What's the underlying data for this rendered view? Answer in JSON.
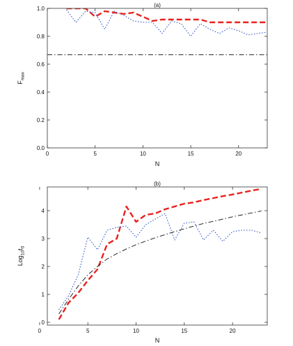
{
  "chart_data": [
    {
      "type": "line",
      "title": "(a)",
      "xlabel": "N",
      "ylabel": "F",
      "ylabel_sub": "max",
      "xlim": [
        0,
        23
      ],
      "ylim": [
        0,
        1
      ],
      "xticks": [
        0,
        5,
        10,
        15,
        20
      ],
      "yticks": [
        0,
        0.2,
        0.4,
        0.6,
        0.8,
        1
      ],
      "ytick_labels": [
        "0.0",
        "0.2",
        "0.4",
        "0.6",
        "0.8",
        "1.0"
      ],
      "series": [
        {
          "color": "#e8211d",
          "dash": "long-dash",
          "width": 2.4,
          "x": [
            2,
            3,
            4,
            5,
            6,
            7,
            8,
            9,
            10,
            11,
            12,
            13,
            14,
            15,
            16,
            17,
            18,
            19,
            20,
            21,
            22,
            23
          ],
          "y": [
            1.0,
            1.0,
            1.0,
            0.94,
            0.98,
            0.97,
            0.96,
            0.97,
            0.94,
            0.91,
            0.92,
            0.92,
            0.92,
            0.92,
            0.92,
            0.9,
            0.9,
            0.9,
            0.9,
            0.9,
            0.9,
            0.9
          ]
        },
        {
          "color": "#3a5ec8",
          "dash": "dotted",
          "width": 1.1,
          "x": [
            2,
            3,
            4,
            5,
            6,
            7,
            8,
            9,
            10,
            11,
            12,
            13,
            14,
            15,
            16,
            17,
            18,
            19,
            20,
            21,
            22,
            23
          ],
          "y": [
            0.99,
            0.9,
            0.98,
            0.97,
            0.85,
            0.98,
            0.95,
            0.91,
            0.9,
            0.9,
            0.82,
            0.91,
            0.89,
            0.8,
            0.89,
            0.85,
            0.82,
            0.86,
            0.84,
            0.81,
            0.82,
            0.83
          ]
        },
        {
          "color": "#111111",
          "dash": "dash-dot",
          "width": 0.9,
          "x": [
            0,
            23
          ],
          "y": [
            0.667,
            0.667
          ]
        }
      ]
    },
    {
      "type": "line",
      "title": "(b)",
      "xlabel": "N",
      "ylabel": "Log",
      "ylabel_sub": "10",
      "ylabel_tail": "t",
      "ylabel_tail_sub": "0",
      "xlim": [
        0.8,
        23.6
      ],
      "ylim": [
        -0.1,
        4.85
      ],
      "xticks": [
        0,
        5,
        10,
        15,
        20
      ],
      "yticks": [
        0,
        1,
        2,
        3,
        4
      ],
      "ytick_labels": [
        "0",
        "1",
        "2",
        "3",
        "4"
      ],
      "series": [
        {
          "color": "#e8211d",
          "dash": "long-dash",
          "width": 2.4,
          "x": [
            2,
            3,
            4,
            5,
            6,
            7,
            8,
            9,
            10,
            11,
            12,
            13,
            14,
            15,
            16,
            17,
            18,
            19,
            20,
            21,
            22,
            23
          ],
          "y": [
            0.1,
            0.7,
            1.05,
            1.5,
            1.9,
            2.8,
            3.0,
            4.15,
            3.6,
            3.85,
            3.9,
            4.05,
            4.15,
            4.25,
            4.3,
            4.38,
            4.45,
            4.52,
            4.58,
            4.65,
            4.72,
            4.78
          ]
        },
        {
          "color": "#3a5ec8",
          "dash": "dotted",
          "width": 1.1,
          "x": [
            2,
            3,
            4,
            5,
            6,
            7,
            8,
            9,
            10,
            11,
            12,
            13,
            14,
            15,
            16,
            17,
            18,
            19,
            20,
            21,
            22,
            23
          ],
          "y": [
            0.45,
            0.95,
            1.7,
            3.05,
            2.6,
            3.3,
            3.4,
            3.45,
            3.05,
            3.5,
            3.7,
            3.9,
            2.95,
            3.55,
            3.6,
            2.95,
            3.3,
            2.9,
            3.25,
            3.3,
            3.3,
            3.2
          ]
        },
        {
          "color": "#111111",
          "dash": "dash-dot",
          "width": 0.9,
          "x": [
            2,
            3,
            4,
            5,
            6,
            7,
            8,
            9,
            10,
            11,
            12,
            13,
            14,
            15,
            16,
            17,
            18,
            19,
            20,
            21,
            22,
            23
          ],
          "y": [
            0.3,
            0.82,
            1.3,
            1.7,
            2.0,
            2.27,
            2.46,
            2.63,
            2.78,
            2.91,
            3.03,
            3.14,
            3.25,
            3.35,
            3.45,
            3.54,
            3.62,
            3.7,
            3.78,
            3.85,
            3.92,
            3.99
          ]
        }
      ]
    }
  ]
}
